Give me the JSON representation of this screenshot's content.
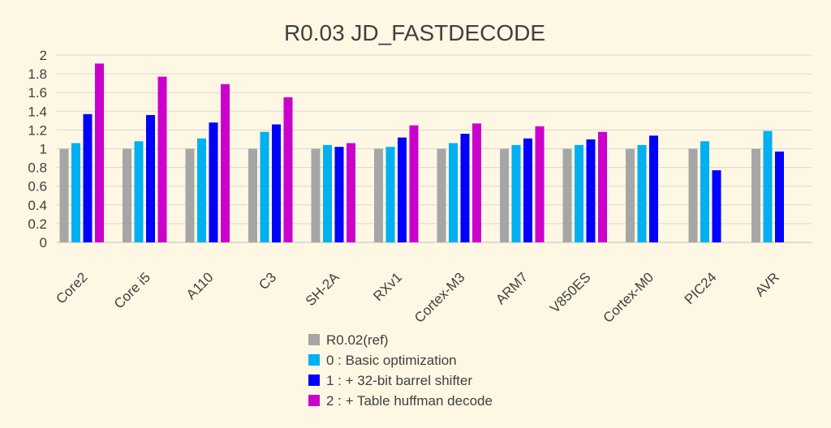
{
  "chart_data": {
    "type": "bar",
    "title": "R0.03 JD_FASTDECODE",
    "xlabel": "",
    "ylabel": "",
    "ylim": [
      0,
      2
    ],
    "yticks": [
      "0",
      "0.2",
      "0.4",
      "0.6",
      "0.8",
      "1",
      "1.2",
      "1.4",
      "1.6",
      "1.8",
      "2"
    ],
    "grid": true,
    "legend_position": "bottom",
    "categories": [
      "Core2",
      "Core i5",
      "A110",
      "C3",
      "SH-2A",
      "RXv1",
      "Cortex-M3",
      "ARM7",
      "V850ES",
      "Cortex-M0",
      "PIC24",
      "AVR"
    ],
    "series": [
      {
        "name": "R0.02(ref)",
        "color": "#a6a6a6",
        "values": [
          1,
          1,
          1,
          1,
          1,
          1,
          1,
          1,
          1,
          1,
          1,
          1
        ]
      },
      {
        "name": "0 : Basic optimization",
        "color": "#00b0f0",
        "values": [
          1.06,
          1.08,
          1.11,
          1.18,
          1.04,
          1.02,
          1.06,
          1.04,
          1.04,
          1.04,
          1.08,
          1.19
        ]
      },
      {
        "name": "1 : + 32-bit barrel shifter",
        "color": "#0000ff",
        "values": [
          1.37,
          1.36,
          1.28,
          1.26,
          1.02,
          1.12,
          1.16,
          1.11,
          1.1,
          1.14,
          0.77,
          0.97
        ]
      },
      {
        "name": "2 : + Table huffman decode",
        "color": "#cc00cc",
        "values": [
          1.91,
          1.77,
          1.69,
          1.55,
          1.06,
          1.25,
          1.27,
          1.24,
          1.18,
          null,
          null,
          null
        ]
      }
    ]
  }
}
